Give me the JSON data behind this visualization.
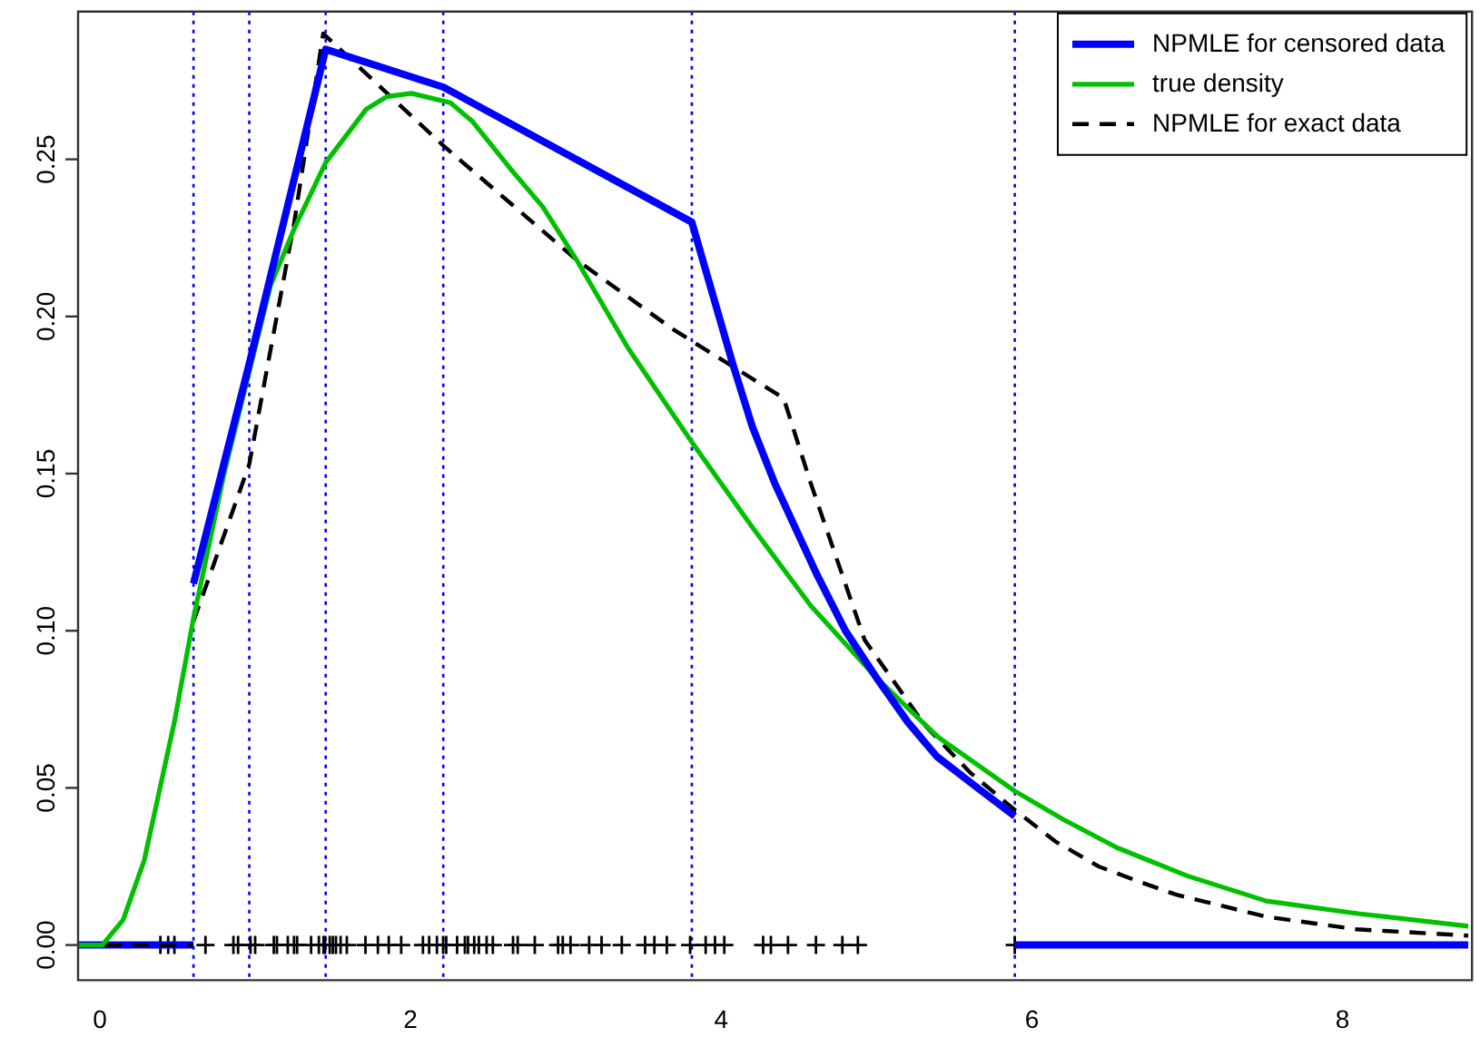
{
  "chart_data": {
    "type": "line",
    "xlim": [
      -0.14,
      8.81
    ],
    "xticks": [
      0,
      2,
      4,
      6,
      8
    ],
    "ylim": [
      -0.0112,
      0.297
    ],
    "yticks": [
      {
        "value": 0,
        "label": "0.00"
      },
      {
        "value": 0.05,
        "label": "0.05"
      },
      {
        "value": 0.1,
        "label": "0.10"
      },
      {
        "value": 0.15,
        "label": "0.15"
      },
      {
        "value": 0.2,
        "label": "0.20"
      },
      {
        "value": 0.25,
        "label": "0.25"
      }
    ],
    "grid": false,
    "legend": "top right",
    "marker": "none",
    "series": [
      {
        "name": "NPMLE for censored data",
        "color": "#0000ff",
        "line_style": "solid",
        "x": [
          0.603,
          0.962,
          1.454,
          2.211,
          3.811,
          4.074,
          4.2,
          4.344,
          4.615,
          4.8,
          5.0,
          5.2,
          5.388,
          5.65,
          5.89
        ],
        "values": [
          0.115,
          0.185,
          0.285,
          0.273,
          0.23,
          0.185,
          0.165,
          0.147,
          0.118,
          0.1,
          0.085,
          0.071,
          0.06,
          0.05,
          0.041
        ]
      },
      {
        "name": "true density",
        "color": "#00c000",
        "line_style": "solid",
        "x": [
          -0.14,
          0.016,
          0.15,
          0.286,
          0.48,
          0.603,
          0.8,
          1.1,
          1.252,
          1.454,
          1.716,
          1.85,
          2.006,
          2.257,
          2.4,
          2.643,
          2.85,
          3.069,
          3.4,
          3.811,
          4.2,
          4.576,
          5.0,
          5.4,
          5.89,
          6.2,
          6.547,
          7.0,
          7.51,
          8.1,
          8.81
        ],
        "values": [
          0,
          0,
          0.008,
          0.027,
          0.071,
          0.104,
          0.15,
          0.21,
          0.228,
          0.249,
          0.266,
          0.27,
          0.271,
          0.268,
          0.262,
          0.247,
          0.235,
          0.218,
          0.19,
          0.16,
          0.133,
          0.108,
          0.085,
          0.066,
          0.049,
          0.04,
          0.031,
          0.022,
          0.014,
          0.01,
          0.006
        ]
      },
      {
        "name": "NPMLE for exact data",
        "color": "#000000",
        "line_style": "dashed",
        "x": [
          0.603,
          0.962,
          1.252,
          1.438,
          2.219,
          3.069,
          3.687,
          4.402,
          4.576,
          4.924,
          5.31,
          5.6,
          5.89,
          6.15,
          6.43,
          6.7,
          6.93,
          7.51,
          8.09,
          8.81
        ],
        "values": [
          0.103,
          0.153,
          0.23,
          0.29,
          0.254,
          0.218,
          0.196,
          0.174,
          0.147,
          0.097,
          0.07,
          0.055,
          0.043,
          0.033,
          0.025,
          0.02,
          0.016,
          0.009,
          0.005,
          0.003
        ]
      },
      {
        "color": "#000000",
        "line_style": "dashed",
        "x": [
          -0.14,
          0.603
        ],
        "values": [
          0,
          0
        ]
      },
      {
        "color": "#0000ff",
        "line_style": "solid",
        "x": [
          -0.14,
          0.603
        ],
        "values": [
          0,
          0
        ]
      },
      {
        "color": "#0000ff",
        "line_style": "solid",
        "x": [
          5.89,
          8.81
        ],
        "values": [
          0,
          0
        ]
      },
      {
        "type": "scatter",
        "color": "#000000",
        "marker": "cross",
        "x": [
          0.39,
          0.44,
          0.48,
          0.68,
          0.86,
          0.89,
          0.97,
          1.0,
          1.12,
          1.14,
          1.21,
          1.25,
          1.27,
          1.36,
          1.41,
          1.44,
          1.45,
          1.48,
          1.5,
          1.52,
          1.55,
          1.59,
          1.71,
          1.79,
          1.86,
          1.94,
          2.08,
          2.12,
          2.17,
          2.21,
          2.23,
          2.3,
          2.35,
          2.37,
          2.41,
          2.44,
          2.49,
          2.53,
          2.66,
          2.69,
          2.8,
          2.95,
          2.98,
          3.03,
          3.15,
          3.23,
          3.36,
          3.51,
          3.57,
          3.65,
          3.8,
          3.9,
          3.96,
          4.02,
          4.27,
          4.32,
          4.43,
          4.61,
          4.78,
          4.88,
          5.89
        ],
        "values": [
          0,
          0,
          0,
          0,
          0,
          0,
          0,
          0,
          0,
          0,
          0,
          0,
          0,
          0,
          0,
          0,
          0,
          0,
          0,
          0,
          0,
          0,
          0,
          0,
          0,
          0,
          0,
          0,
          0,
          0,
          0,
          0,
          0,
          0,
          0,
          0,
          0,
          0,
          0,
          0,
          0,
          0,
          0,
          0,
          0,
          0,
          0,
          0,
          0,
          0,
          0,
          0,
          0,
          0,
          0,
          0,
          0,
          0,
          0,
          0,
          0
        ]
      }
    ],
    "ref_lines": [
      {
        "axis": "x",
        "value": 0.603,
        "color": "#0000ff",
        "line_style": "dotted"
      },
      {
        "axis": "x",
        "value": 0.962,
        "color": "#0000ff",
        "line_style": "dotted"
      },
      {
        "axis": "x",
        "value": 1.454,
        "color": "#0000ff",
        "line_style": "dotted"
      },
      {
        "axis": "x",
        "value": 2.211,
        "color": "#0000ff",
        "line_style": "dotted"
      },
      {
        "axis": "x",
        "value": 3.811,
        "color": "#0000ff",
        "line_style": "dotted"
      },
      {
        "axis": "x",
        "value": 5.89,
        "color": "#0000ff",
        "line_style": "dotted"
      }
    ]
  }
}
